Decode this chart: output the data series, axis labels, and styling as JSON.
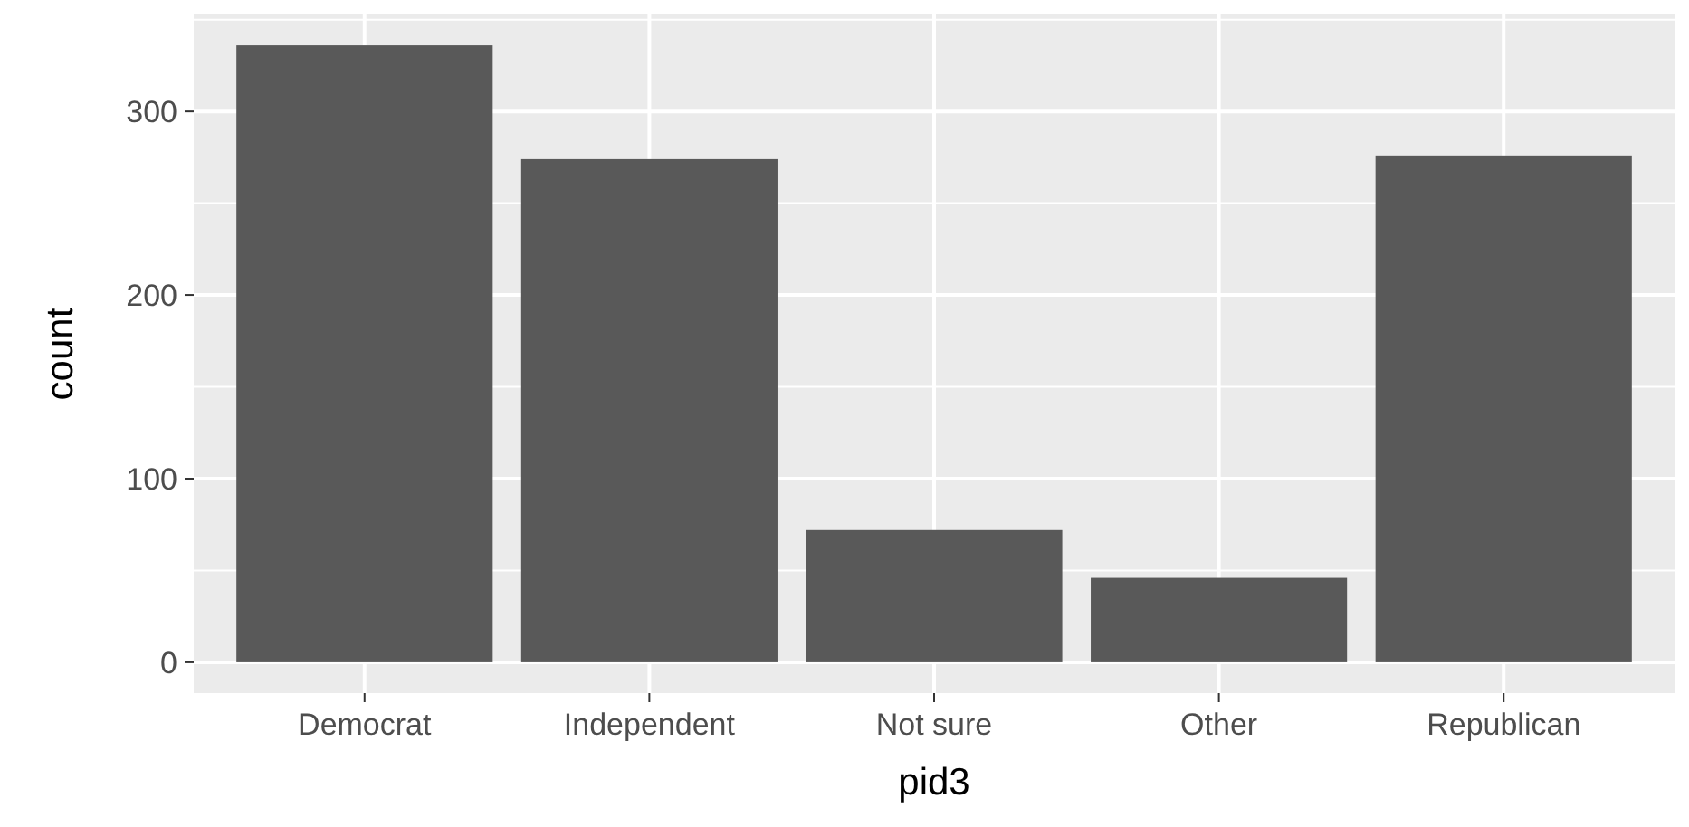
{
  "chart_data": {
    "type": "bar",
    "xlabel": "pid3",
    "ylabel": "count",
    "categories": [
      "Democrat",
      "Independent",
      "Not sure",
      "Other",
      "Republican"
    ],
    "values": [
      336,
      274,
      72,
      46,
      276
    ],
    "color": "#595959",
    "ylim": [
      -16.8,
      352.8
    ],
    "yticks": [
      0,
      100,
      200,
      300
    ],
    "grid": true
  }
}
